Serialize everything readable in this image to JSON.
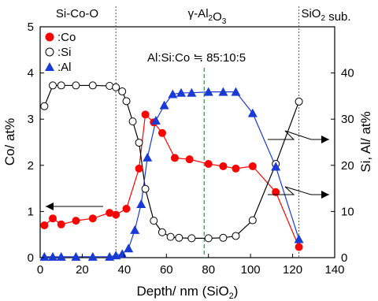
{
  "chart_data": {
    "type": "line",
    "title": "",
    "xlabel": "Depth/ nm (SiO2)",
    "ylabel_left": "Co/ at%",
    "ylabel_right": "Si, Al/ at%",
    "xlim": [
      0,
      140
    ],
    "ylim_left": [
      0,
      5
    ],
    "ylim_right": [
      0,
      50
    ],
    "x_ticks": [
      "0",
      "20",
      "40",
      "60",
      "80",
      "100",
      "120",
      "140"
    ],
    "y_left_ticks": [
      "0",
      "1",
      "2",
      "3",
      "4",
      "5"
    ],
    "y_right_ticks": [
      "0",
      "10",
      "20",
      "30",
      "40"
    ],
    "grid": false,
    "legend_position": "top-left",
    "region_labels": [
      {
        "label": "Si-Co-O",
        "x_center": 17
      },
      {
        "label": "γ-Al2O3",
        "x_center": 80
      },
      {
        "label": "SiO2 sub.",
        "x_center": 131
      }
    ],
    "region_boundaries_x": [
      36,
      123
    ],
    "annotation": "Al:Si:Co ≒ 85:10:5",
    "annotation_line_x": 78,
    "series": [
      {
        "name": ":Co",
        "axis": "left",
        "color": "#ff0000",
        "marker": "filled-circle",
        "x": [
          2,
          6,
          10,
          17,
          25,
          33,
          36,
          41,
          47,
          50,
          54,
          58,
          64,
          71,
          80,
          87,
          93,
          101,
          112,
          123
        ],
        "y": [
          0.7,
          0.85,
          0.72,
          0.8,
          0.85,
          0.97,
          0.93,
          1.06,
          1.93,
          3.1,
          2.93,
          2.7,
          2.16,
          2.13,
          2.03,
          1.98,
          1.93,
          1.98,
          1.42,
          0.23
        ]
      },
      {
        "name": ":Si",
        "axis": "right",
        "color": "#000000",
        "marker": "open-circle",
        "x": [
          2,
          6,
          10,
          17,
          25,
          33,
          36,
          39,
          41,
          44,
          47,
          50,
          54,
          58,
          62,
          66,
          72,
          80,
          87,
          93,
          101,
          112,
          123
        ],
        "y": [
          32.8,
          37.3,
          37.3,
          37.3,
          37.3,
          37.2,
          36.9,
          36.0,
          33.9,
          29.5,
          24.9,
          14.9,
          8.0,
          5.5,
          4.5,
          4.3,
          4.2,
          4.2,
          4.3,
          4.7,
          8.1,
          20.3,
          33.8
        ]
      },
      {
        "name": ":Al",
        "axis": "right",
        "color": "#1a3ad6",
        "marker": "filled-triangle",
        "x": [
          2,
          6,
          10,
          17,
          25,
          33,
          36,
          39,
          42,
          45,
          48,
          51,
          55,
          59,
          63,
          67,
          72,
          80,
          87,
          93,
          101,
          112,
          123
        ],
        "y": [
          0.2,
          0.2,
          0.2,
          0.2,
          0.2,
          0.2,
          0.5,
          0.8,
          2.0,
          6.0,
          11.6,
          21.7,
          29.7,
          33.0,
          35.4,
          35.7,
          35.7,
          35.9,
          35.9,
          35.9,
          31.3,
          19.7,
          4.0
        ]
      }
    ]
  }
}
